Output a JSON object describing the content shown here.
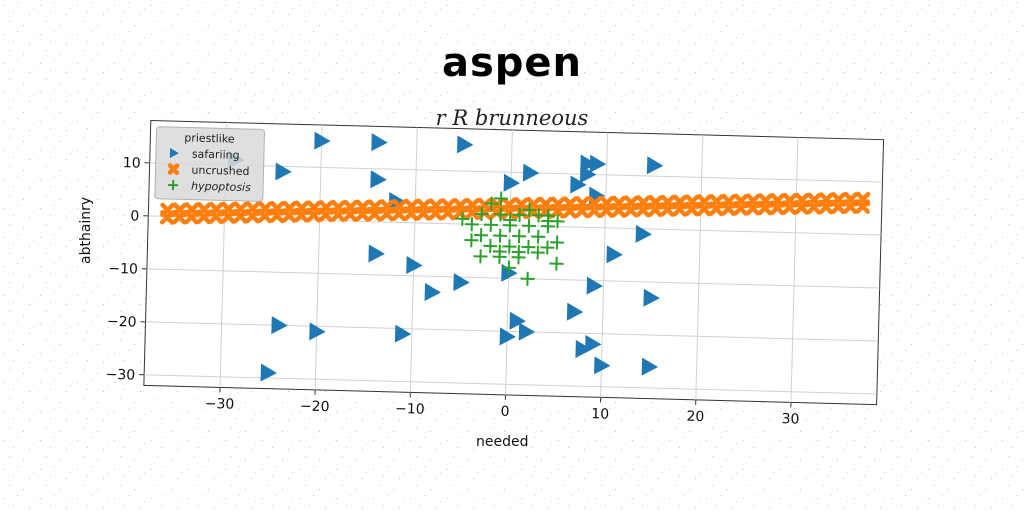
{
  "chart_data": {
    "type": "scatter",
    "title": "aspen",
    "subtitle": "r R brunneous",
    "xlabel": "needed",
    "ylabel": "abthainry",
    "xlim": [
      -38,
      39
    ],
    "ylim": [
      -32,
      18
    ],
    "xticks": [
      -30,
      -20,
      -10,
      0,
      10,
      20,
      30
    ],
    "yticks": [
      10,
      0,
      -10,
      -20,
      -30
    ],
    "grid": true,
    "legend": {
      "title": "priestlike",
      "placement": "top-left"
    },
    "series": [
      {
        "name": "safariing",
        "marker": "triangle-right",
        "color": "#1f77b4",
        "points": [
          [
            -29,
            11
          ],
          [
            -24,
            9
          ],
          [
            -20,
            15
          ],
          [
            -14,
            15
          ],
          [
            -14,
            8
          ],
          [
            -12,
            4
          ],
          [
            -5,
            15
          ],
          [
            0,
            8
          ],
          [
            2,
            10
          ],
          [
            7,
            8
          ],
          [
            8,
            10
          ],
          [
            8,
            12
          ],
          [
            9,
            12
          ],
          [
            15,
            12
          ],
          [
            9,
            6
          ],
          [
            14,
            -1
          ],
          [
            11,
            -5
          ],
          [
            -14,
            -6
          ],
          [
            -10,
            -8
          ],
          [
            -8,
            -13
          ],
          [
            -5,
            -11
          ],
          [
            0,
            -9
          ],
          [
            9,
            -11
          ],
          [
            15,
            -13
          ],
          [
            7,
            -16
          ],
          [
            1,
            -18
          ],
          [
            2,
            -20
          ],
          [
            0,
            -21
          ],
          [
            -11,
            -21
          ],
          [
            -20,
            -21
          ],
          [
            -24,
            -20
          ],
          [
            8,
            -23
          ],
          [
            9,
            -22
          ],
          [
            10,
            -26
          ],
          [
            15,
            -26
          ],
          [
            -25,
            -29
          ]
        ]
      },
      {
        "name": "uncrushed",
        "marker": "x-filled",
        "color": "#ff7f0e",
        "line": {
          "x_from": -36,
          "x_to": 37,
          "y_from": 0.5,
          "y_to": 6,
          "count": 58,
          "band": 1.4
        }
      },
      {
        "name": "hypoptosis",
        "marker": "plus",
        "color": "#2ca02c",
        "points": [
          [
            -2,
            4
          ],
          [
            -3,
            2
          ],
          [
            -1,
            2
          ],
          [
            1,
            2
          ],
          [
            3,
            2
          ],
          [
            4,
            1
          ],
          [
            5,
            1
          ],
          [
            -4,
            0
          ],
          [
            -2,
            0
          ],
          [
            0,
            0
          ],
          [
            2,
            0
          ],
          [
            4,
            0
          ],
          [
            -3,
            -2
          ],
          [
            -1,
            -2
          ],
          [
            1,
            -2
          ],
          [
            3,
            -2
          ],
          [
            -4,
            -3
          ],
          [
            -2,
            -4
          ],
          [
            0,
            -4
          ],
          [
            2,
            -4
          ],
          [
            4,
            -4
          ],
          [
            -1,
            -5
          ],
          [
            1,
            -5
          ],
          [
            3,
            -5
          ],
          [
            5,
            -3
          ],
          [
            -3,
            -6
          ],
          [
            -1,
            -6
          ],
          [
            1,
            -6
          ],
          [
            0,
            -8
          ],
          [
            5,
            -7
          ],
          [
            2,
            -10
          ],
          [
            -1,
            5
          ],
          [
            2,
            3
          ],
          [
            4,
            2
          ],
          [
            -5,
            1
          ],
          [
            0,
            1
          ]
        ]
      }
    ]
  }
}
